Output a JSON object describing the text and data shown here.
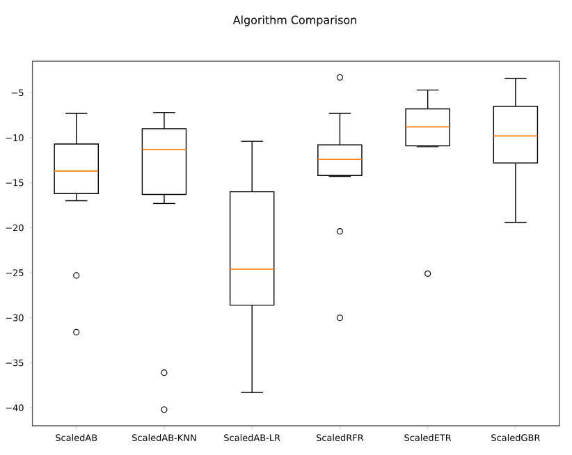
{
  "chart_data": {
    "type": "box",
    "title": "Algorithm Comparison",
    "categories": [
      "ScaledAB",
      "ScaledAB-KNN",
      "ScaledAB-LR",
      "ScaledRFR",
      "ScaledETR",
      "ScaledGBR"
    ],
    "boxes": [
      {
        "low": -17.0,
        "q1": -16.2,
        "median": -13.7,
        "q3": -10.7,
        "high": -7.3,
        "outliers": [
          -25.3,
          -31.6
        ]
      },
      {
        "low": -17.3,
        "q1": -16.3,
        "median": -11.3,
        "q3": -9.0,
        "high": -7.2,
        "outliers": [
          -36.1,
          -40.2
        ]
      },
      {
        "low": -38.3,
        "q1": -28.6,
        "median": -24.6,
        "q3": -16.0,
        "high": -10.4
      },
      {
        "low": -14.3,
        "q1": -14.2,
        "median": -12.4,
        "q3": -10.8,
        "high": -7.3,
        "outliers": [
          -3.3,
          -20.4,
          -30.0
        ]
      },
      {
        "low": -11.0,
        "q1": -10.9,
        "median": -8.8,
        "q3": -6.8,
        "high": -4.7,
        "outliers": [
          -25.1
        ]
      },
      {
        "low": -19.4,
        "q1": -12.8,
        "median": -9.8,
        "q3": -6.5,
        "high": -3.4
      }
    ],
    "ylim": [
      -42.0,
      -1.5
    ],
    "yticks": [
      {
        "value": -40,
        "label": "−40"
      },
      {
        "value": -35,
        "label": "−35"
      },
      {
        "value": -30,
        "label": "−30"
      },
      {
        "value": -25,
        "label": "−25"
      },
      {
        "value": -20,
        "label": "−20"
      },
      {
        "value": -15,
        "label": "−15"
      },
      {
        "value": -10,
        "label": "−10"
      },
      {
        "value": -5,
        "label": "−5"
      }
    ]
  }
}
